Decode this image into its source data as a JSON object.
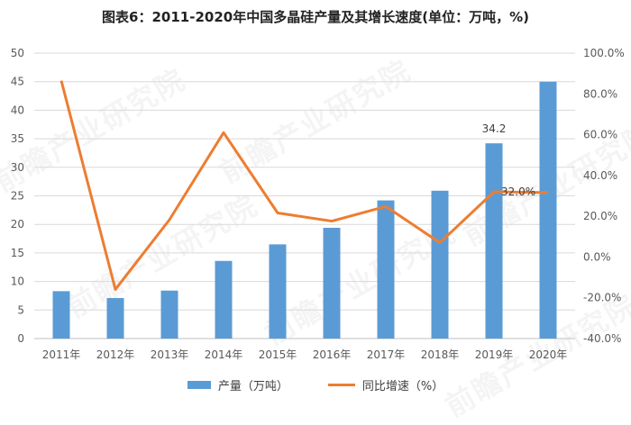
{
  "title": "图表6：2011-2020年中国多晶硅产量及其增长速度(单位：万吨，%)",
  "watermark": "前瞻产业研究院",
  "colors": {
    "bar": "#5B9BD5",
    "line": "#ED7D31",
    "grid": "#D9D9D9",
    "axis": "#BFBFBF"
  },
  "chart_data": {
    "type": "bar+line",
    "categories": [
      "2011年",
      "2012年",
      "2013年",
      "2014年",
      "2015年",
      "2016年",
      "2017年",
      "2018年",
      "2019年",
      "2020年"
    ],
    "series": [
      {
        "name": "产量（万吨）",
        "type": "bar",
        "axis": "left",
        "values": [
          8.3,
          7.1,
          8.4,
          13.6,
          16.5,
          19.4,
          24.2,
          25.9,
          34.2,
          45.0
        ]
      },
      {
        "name": "同比增速（%）",
        "type": "line",
        "axis": "right",
        "values": [
          86.5,
          -15.9,
          18.3,
          61.0,
          21.6,
          17.6,
          24.8,
          7.0,
          32.0,
          31.6
        ]
      }
    ],
    "y_left": {
      "min": 0,
      "max": 50,
      "step": 5,
      "ticks": [
        "0",
        "5",
        "10",
        "15",
        "20",
        "25",
        "30",
        "35",
        "40",
        "45",
        "50"
      ]
    },
    "y_right": {
      "min": -40,
      "max": 100,
      "step": 20,
      "ticks": [
        "-40.0%",
        "-20.0%",
        "0.0%",
        "20.0%",
        "40.0%",
        "60.0%",
        "80.0%",
        "100.0%"
      ]
    },
    "annotations": [
      {
        "series": 0,
        "index": 8,
        "text": "34.2"
      },
      {
        "series": 1,
        "index": 8,
        "text": "32.0%"
      }
    ],
    "grid": true,
    "legend_position": "bottom"
  }
}
